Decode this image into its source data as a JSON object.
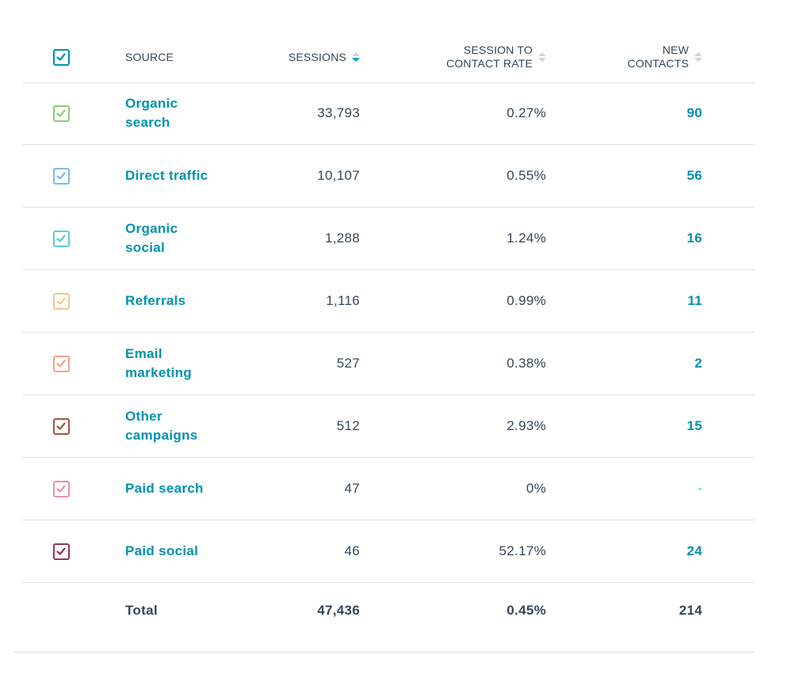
{
  "header": {
    "source": "SOURCE",
    "sessions": "SESSIONS",
    "rate_line1": "SESSION TO",
    "rate_line2": "CONTACT RATE",
    "contacts_line1": "NEW",
    "contacts_line2": "CONTACTS",
    "select_all_color": "#0091ae",
    "sort_active_color": "#00a4bd"
  },
  "rows": [
    {
      "source_line1": "Organic",
      "source_line2": "search",
      "sessions": "33,793",
      "rate": "0.27%",
      "contacts": "90",
      "color": "#8ccb7f",
      "checked": true
    },
    {
      "source_line1": "Direct traffic",
      "source_line2": "",
      "sessions": "10,107",
      "rate": "0.55%",
      "contacts": "56",
      "color": "#7ab8f2",
      "checked": true
    },
    {
      "source_line1": "Organic",
      "source_line2": "social",
      "sessions": "1,288",
      "rate": "1.24%",
      "contacts": "16",
      "color": "#5fccd6",
      "checked": true
    },
    {
      "source_line1": "Referrals",
      "source_line2": "",
      "sessions": "1,116",
      "rate": "0.99%",
      "contacts": "11",
      "color": "#f6c587",
      "checked": true
    },
    {
      "source_line1": "Email",
      "source_line2": "marketing",
      "sessions": "527",
      "rate": "0.38%",
      "contacts": "2",
      "color": "#f2a28b",
      "checked": true
    },
    {
      "source_line1": "Other",
      "source_line2": "campaigns",
      "sessions": "512",
      "rate": "2.93%",
      "contacts": "15",
      "color": "#a0573c",
      "checked": true
    },
    {
      "source_line1": "Paid search",
      "source_line2": "",
      "sessions": "47",
      "rate": "0%",
      "contacts": "-",
      "color": "#ea90b1",
      "checked": true
    },
    {
      "source_line1": "Paid social",
      "source_line2": "",
      "sessions": "46",
      "rate": "52.17%",
      "contacts": "24",
      "color": "#8b3a5e",
      "checked": true
    }
  ],
  "total": {
    "label": "Total",
    "sessions": "47,436",
    "rate": "0.45%",
    "contacts": "214"
  }
}
